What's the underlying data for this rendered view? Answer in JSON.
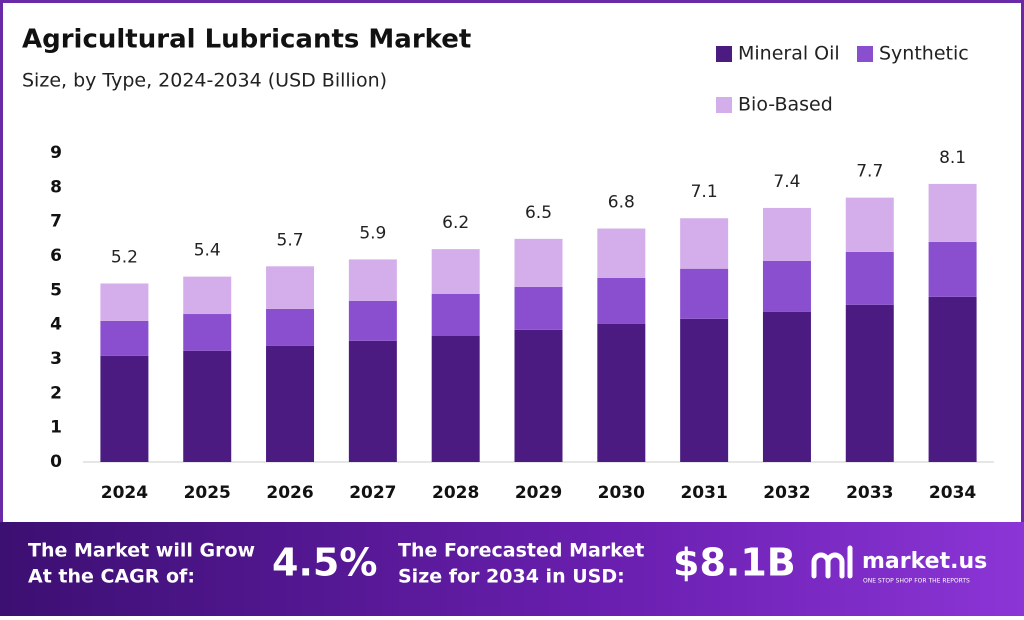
{
  "chart_data": {
    "type": "stacked-bar",
    "title": "Agricultural Lubricants Market",
    "subtitle": "Size, by Type, 2024-2034 (USD Billion)",
    "categories": [
      "2024",
      "2025",
      "2026",
      "2027",
      "2028",
      "2029",
      "2030",
      "2031",
      "2032",
      "2033",
      "2034"
    ],
    "series": [
      {
        "name": "Mineral Oil",
        "color": "#4b1b82",
        "values": [
          3.09,
          3.24,
          3.38,
          3.53,
          3.67,
          3.85,
          4.02,
          4.17,
          4.37,
          4.58,
          4.81
        ]
      },
      {
        "name": "Synthetic",
        "color": "#8a4fcf",
        "values": [
          1.02,
          1.07,
          1.08,
          1.16,
          1.23,
          1.25,
          1.34,
          1.46,
          1.49,
          1.54,
          1.6
        ]
      },
      {
        "name": "Bio-Based",
        "color": "#d4aeea",
        "values": [
          1.09,
          1.09,
          1.24,
          1.21,
          1.3,
          1.4,
          1.44,
          1.47,
          1.54,
          1.58,
          1.69
        ]
      }
    ],
    "totals": [
      5.2,
      5.4,
      5.7,
      5.9,
      6.2,
      6.5,
      6.8,
      7.1,
      7.4,
      7.7,
      8.1
    ],
    "ylim": [
      0,
      9
    ],
    "yticks": [
      0,
      1,
      2,
      3,
      4,
      5,
      6,
      7,
      8,
      9
    ],
    "grid": false,
    "legend": "top-right"
  },
  "footer": {
    "cagr_text": [
      "The Market will Grow",
      "At the CAGR of:"
    ],
    "cagr": "4.5%",
    "forecast_text": [
      "The Forecasted Market",
      "Size for 2034 in USD:"
    ],
    "forecast": "$8.1B",
    "brand": "market.us",
    "tagline": "ONE STOP SHOP FOR THE REPORTS"
  }
}
